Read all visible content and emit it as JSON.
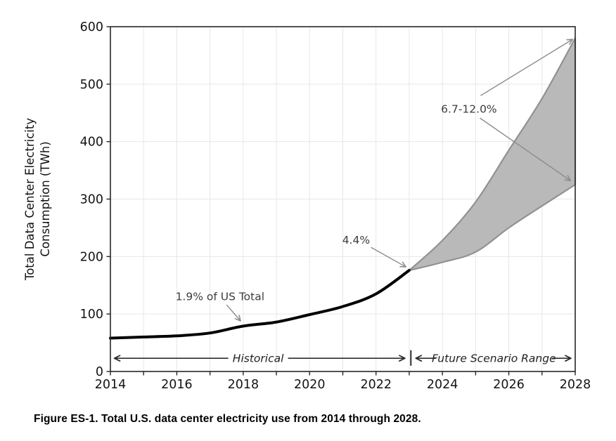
{
  "figure": {
    "caption": "Figure ES-1. Total U.S. data center electricity use from 2014 through 2028."
  },
  "chart_data": {
    "type": "area",
    "title": "",
    "xlabel": "",
    "ylabel": "Total Data Center Electricity Consumption (TWh)",
    "ylabel_lines": [
      "Total Data Center Electricity",
      "Consumption (TWh)"
    ],
    "xlim": [
      2014,
      2028
    ],
    "ylim": [
      0,
      600
    ],
    "x_major_ticks": [
      2014,
      2016,
      2018,
      2020,
      2022,
      2024,
      2026,
      2028
    ],
    "x_minor_ticks": [
      2015,
      2017,
      2019,
      2021,
      2023,
      2025,
      2027
    ],
    "y_ticks": [
      0,
      100,
      200,
      300,
      400,
      500,
      600
    ],
    "grid": "on (light gray, every year vertical, every 100 TWh horizontal)",
    "legend_position": "none",
    "colors": {
      "historical_line": "#000000",
      "band_fill": "#b9b9b9",
      "band_edge": "#919191",
      "annotation_arrow": "#8c8c8c",
      "range_arrow": "#2d2d2d",
      "grid_line": "#e7e7e7",
      "spine": "#262626"
    },
    "series": [
      {
        "name": "Historical",
        "type": "line",
        "x": [
          2014,
          2015,
          2016,
          2017,
          2018,
          2019,
          2020,
          2021,
          2022,
          2023
        ],
        "values": [
          58,
          60,
          62,
          67,
          79,
          86,
          99,
          113,
          135,
          176
        ]
      },
      {
        "name": "Future Scenario Range",
        "type": "band",
        "x": [
          2023,
          2024,
          2025,
          2026,
          2027,
          2028
        ],
        "lower": [
          176,
          190,
          208,
          250,
          288,
          325
        ],
        "upper": [
          176,
          228,
          295,
          385,
          475,
          580
        ]
      }
    ],
    "annotations": [
      {
        "text": "1.9% of US Total",
        "text_x": 2017.3,
        "text_y": 131,
        "arrows": [
          {
            "from": [
              2017.5,
              116
            ],
            "to": [
              2017.92,
              88
            ]
          }
        ]
      },
      {
        "text": "4.4%",
        "text_x": 2021.4,
        "text_y": 229,
        "arrows": [
          {
            "from": [
              2021.85,
              216
            ],
            "to": [
              2022.9,
              182
            ]
          }
        ]
      },
      {
        "text": "6.7-12.0%",
        "text_x": 2024.8,
        "text_y": 457,
        "arrows": [
          {
            "from": [
              2025.15,
              480
            ],
            "to": [
              2027.92,
              578
            ]
          },
          {
            "from": [
              2025.13,
              441
            ],
            "to": [
              2027.86,
              332
            ]
          }
        ]
      }
    ],
    "range_arrows": [
      {
        "label": "Historical",
        "x_start": 2014.12,
        "x_end": 2022.87,
        "text_x": 2018.45,
        "y": 23
      },
      {
        "label": "Future Scenario Range",
        "x_start": 2023.2,
        "x_end": 2027.87,
        "text_x": 2025.55,
        "y": 23
      }
    ],
    "range_divider": {
      "x": 2023.05,
      "y_from": 10,
      "y_to": 37
    }
  }
}
